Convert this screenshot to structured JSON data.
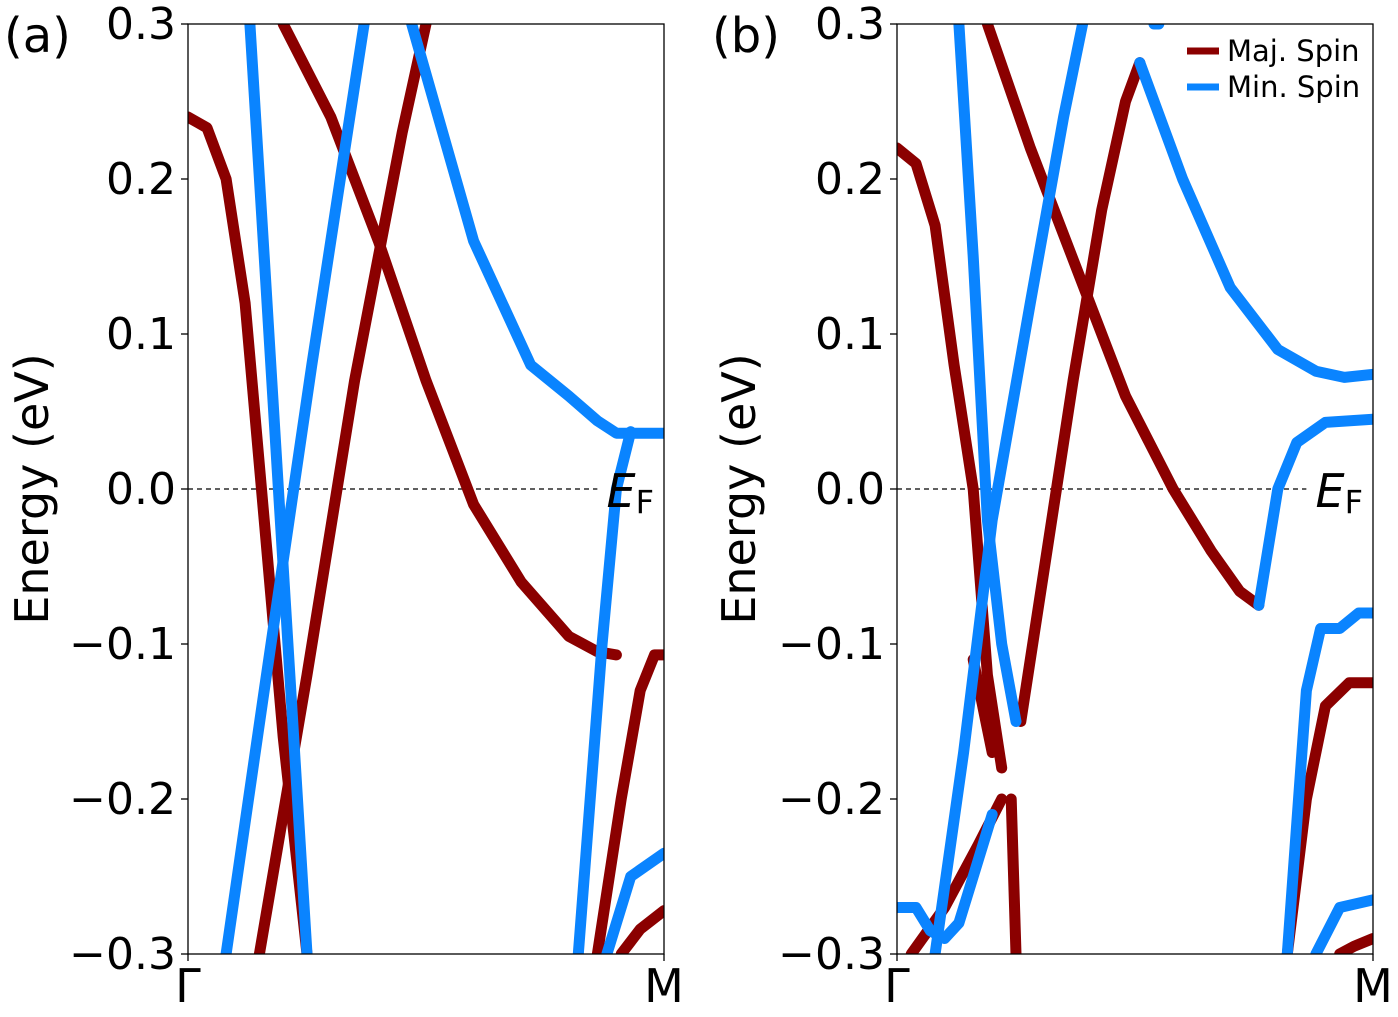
{
  "chart_data": [
    {
      "type": "line",
      "panel_label": "(a)",
      "ylabel": "Energy (eV)",
      "ylim": [
        -0.3,
        0.3
      ],
      "xlim": [
        0,
        1
      ],
      "yticks": [
        "0.3",
        "0.2",
        "0.1",
        "0.0",
        "−0.1",
        "−0.2",
        "−0.3"
      ],
      "ytick_values": [
        0.3,
        0.2,
        0.1,
        0.0,
        -0.1,
        -0.2,
        -0.3
      ],
      "xticks": [
        "Γ",
        "M"
      ],
      "xtick_values": [
        0,
        1
      ],
      "fermi_level": 0.0,
      "fermi_label": "E",
      "fermi_label_sub": "F",
      "series": [
        {
          "name": "Maj. Spin",
          "color": "#8b0000",
          "points": [
            [
              0,
              0.24
            ],
            [
              0.04,
              0.233
            ],
            [
              0.08,
              0.2
            ],
            [
              0.12,
              0.12
            ],
            [
              0.16,
              -0.02
            ],
            [
              0.2,
              -0.16
            ],
            [
              0.25,
              -0.3
            ]
          ]
        },
        {
          "name": "Maj. Spin",
          "color": "#8b0000",
          "points": [
            [
              0.2,
              0.3
            ],
            [
              0.3,
              0.24
            ],
            [
              0.4,
              0.16
            ],
            [
              0.5,
              0.07
            ],
            [
              0.6,
              -0.01
            ],
            [
              0.7,
              -0.06
            ],
            [
              0.8,
              -0.095
            ],
            [
              0.86,
              -0.105
            ],
            [
              0.9,
              -0.107
            ]
          ]
        },
        {
          "name": "Maj. Spin",
          "color": "#8b0000",
          "points": [
            [
              0.15,
              -0.3
            ],
            [
              0.25,
              -0.12
            ],
            [
              0.35,
              0.07
            ],
            [
              0.45,
              0.23
            ],
            [
              0.5,
              0.3
            ]
          ]
        },
        {
          "name": "Maj. Spin",
          "color": "#8b0000",
          "points": [
            [
              0.86,
              -0.3
            ],
            [
              0.91,
              -0.2
            ],
            [
              0.95,
              -0.13
            ],
            [
              0.98,
              -0.107
            ],
            [
              1.0,
              -0.107
            ]
          ]
        },
        {
          "name": "Maj. Spin",
          "color": "#8b0000",
          "points": [
            [
              0.91,
              -0.3
            ],
            [
              0.95,
              -0.284
            ],
            [
              1.0,
              -0.272
            ]
          ]
        },
        {
          "name": "Min. Spin",
          "color": "#0a84ff",
          "points": [
            [
              0.13,
              0.3
            ],
            [
              0.16,
              0.15
            ],
            [
              0.19,
              0.0
            ],
            [
              0.22,
              -0.15
            ],
            [
              0.25,
              -0.3
            ]
          ]
        },
        {
          "name": "Min. Spin",
          "color": "#0a84ff",
          "points": [
            [
              0.08,
              -0.3
            ],
            [
              0.16,
              -0.13
            ],
            [
              0.26,
              0.08
            ],
            [
              0.34,
              0.24
            ],
            [
              0.37,
              0.3
            ]
          ]
        },
        {
          "name": "Min. Spin",
          "color": "#0a84ff",
          "points": [
            [
              0.47,
              0.3
            ],
            [
              0.6,
              0.16
            ],
            [
              0.72,
              0.08
            ],
            [
              0.8,
              0.06
            ],
            [
              0.86,
              0.044
            ],
            [
              0.9,
              0.036
            ],
            [
              1.0,
              0.036
            ]
          ]
        },
        {
          "name": "Min. Spin",
          "color": "#0a84ff",
          "points": [
            [
              0.82,
              -0.3
            ],
            [
              0.87,
              -0.1
            ],
            [
              0.9,
              0.0
            ],
            [
              0.93,
              0.037
            ]
          ]
        },
        {
          "name": "Min. Spin",
          "color": "#0a84ff",
          "points": [
            [
              0.88,
              -0.3
            ],
            [
              0.93,
              -0.25
            ],
            [
              1.0,
              -0.235
            ]
          ]
        }
      ]
    },
    {
      "type": "line",
      "panel_label": "(b)",
      "ylabel": "Energy (eV)",
      "ylim": [
        -0.3,
        0.3
      ],
      "xlim": [
        0,
        1
      ],
      "yticks": [
        "0.3",
        "0.2",
        "0.1",
        "0.0",
        "−0.1",
        "−0.2",
        "−0.3"
      ],
      "ytick_values": [
        0.3,
        0.2,
        0.1,
        0.0,
        -0.1,
        -0.2,
        -0.3
      ],
      "xticks": [
        "Γ",
        "M"
      ],
      "xtick_values": [
        0,
        1
      ],
      "fermi_level": 0.0,
      "fermi_label": "E",
      "fermi_label_sub": "F",
      "legend": {
        "placement": "top-right",
        "entries": [
          {
            "label": "Maj. Spin",
            "color": "#8b0000"
          },
          {
            "label": "Min. Spin",
            "color": "#0a84ff"
          }
        ]
      },
      "series": [
        {
          "name": "Maj. Spin",
          "color": "#8b0000",
          "points": [
            [
              0,
              0.22
            ],
            [
              0.04,
              0.21
            ],
            [
              0.08,
              0.17
            ],
            [
              0.12,
              0.08
            ],
            [
              0.16,
              0.0
            ],
            [
              0.19,
              -0.12
            ],
            [
              0.22,
              -0.18
            ]
          ]
        },
        {
          "name": "Maj. Spin",
          "color": "#8b0000",
          "points": [
            [
              0.24,
              -0.2
            ],
            [
              0.25,
              -0.3
            ]
          ]
        },
        {
          "name": "Maj. Spin",
          "color": "#8b0000",
          "points": [
            [
              0.19,
              0.3
            ],
            [
              0.28,
              0.22
            ],
            [
              0.38,
              0.14
            ],
            [
              0.48,
              0.06
            ],
            [
              0.58,
              0.0
            ],
            [
              0.66,
              -0.04
            ],
            [
              0.72,
              -0.066
            ],
            [
              0.76,
              -0.075
            ]
          ]
        },
        {
          "name": "Maj. Spin",
          "color": "#8b0000",
          "points": [
            [
              0.16,
              -0.11
            ],
            [
              0.2,
              -0.17
            ]
          ]
        },
        {
          "name": "Maj. Spin",
          "color": "#8b0000",
          "points": [
            [
              0.26,
              -0.15
            ],
            [
              0.31,
              -0.05
            ],
            [
              0.37,
              0.07
            ],
            [
              0.43,
              0.18
            ],
            [
              0.48,
              0.25
            ],
            [
              0.51,
              0.275
            ]
          ]
        },
        {
          "name": "Maj. Spin",
          "color": "#8b0000",
          "points": [
            [
              0.03,
              -0.3
            ],
            [
              0.1,
              -0.27
            ],
            [
              0.17,
              -0.23
            ],
            [
              0.22,
              -0.2
            ]
          ]
        },
        {
          "name": "Maj. Spin",
          "color": "#8b0000",
          "points": [
            [
              0.82,
              -0.3
            ],
            [
              0.86,
              -0.2
            ],
            [
              0.9,
              -0.14
            ],
            [
              0.95,
              -0.125
            ],
            [
              1.0,
              -0.125
            ]
          ]
        },
        {
          "name": "Maj. Spin",
          "color": "#8b0000",
          "points": [
            [
              0.93,
              -0.3
            ],
            [
              0.96,
              -0.295
            ],
            [
              1.0,
              -0.29
            ]
          ]
        },
        {
          "name": "Min. Spin",
          "color": "#0a84ff",
          "points": [
            [
              0.13,
              0.3
            ],
            [
              0.16,
              0.15
            ],
            [
              0.19,
              -0.02
            ],
            [
              0.22,
              -0.1
            ],
            [
              0.25,
              -0.15
            ]
          ]
        },
        {
          "name": "Min. Spin",
          "color": "#0a84ff",
          "points": [
            [
              0.08,
              -0.3
            ],
            [
              0.14,
              -0.17
            ],
            [
              0.2,
              -0.02
            ],
            [
              0.28,
              0.12
            ],
            [
              0.35,
              0.24
            ],
            [
              0.39,
              0.3
            ]
          ]
        },
        {
          "name": "Min. Spin",
          "color": "#0a84ff",
          "points": [
            [
              0.51,
              0.275
            ],
            [
              0.6,
              0.2
            ],
            [
              0.7,
              0.13
            ],
            [
              0.8,
              0.09
            ],
            [
              0.88,
              0.076
            ],
            [
              0.94,
              0.072
            ],
            [
              1.0,
              0.074
            ]
          ]
        },
        {
          "name": "Min. Spin",
          "color": "#0a84ff",
          "points": [
            [
              0.76,
              -0.075
            ],
            [
              0.8,
              0.0
            ],
            [
              0.84,
              0.03
            ],
            [
              0.9,
              0.043
            ],
            [
              1.0,
              0.045
            ]
          ]
        },
        {
          "name": "Min. Spin",
          "color": "#0a84ff",
          "points": [
            [
              0.82,
              -0.3
            ],
            [
              0.86,
              -0.13
            ],
            [
              0.89,
              -0.09
            ],
            [
              0.93,
              -0.09
            ],
            [
              0.97,
              -0.08
            ],
            [
              1.0,
              -0.08
            ]
          ]
        },
        {
          "name": "Min. Spin",
          "color": "#0a84ff",
          "points": [
            [
              0.0,
              -0.27
            ],
            [
              0.04,
              -0.27
            ],
            [
              0.07,
              -0.285
            ],
            [
              0.1,
              -0.29
            ],
            [
              0.13,
              -0.28
            ],
            [
              0.16,
              -0.25
            ],
            [
              0.2,
              -0.21
            ]
          ]
        },
        {
          "name": "Min. Spin",
          "color": "#0a84ff",
          "points": [
            [
              0.88,
              -0.3
            ],
            [
              0.93,
              -0.27
            ],
            [
              1.0,
              -0.265
            ]
          ]
        },
        {
          "name": "Min. Spin",
          "color": "#0a84ff",
          "points": [
            [
              0.54,
              0.3
            ],
            [
              0.55,
              0.3
            ]
          ]
        }
      ]
    }
  ]
}
